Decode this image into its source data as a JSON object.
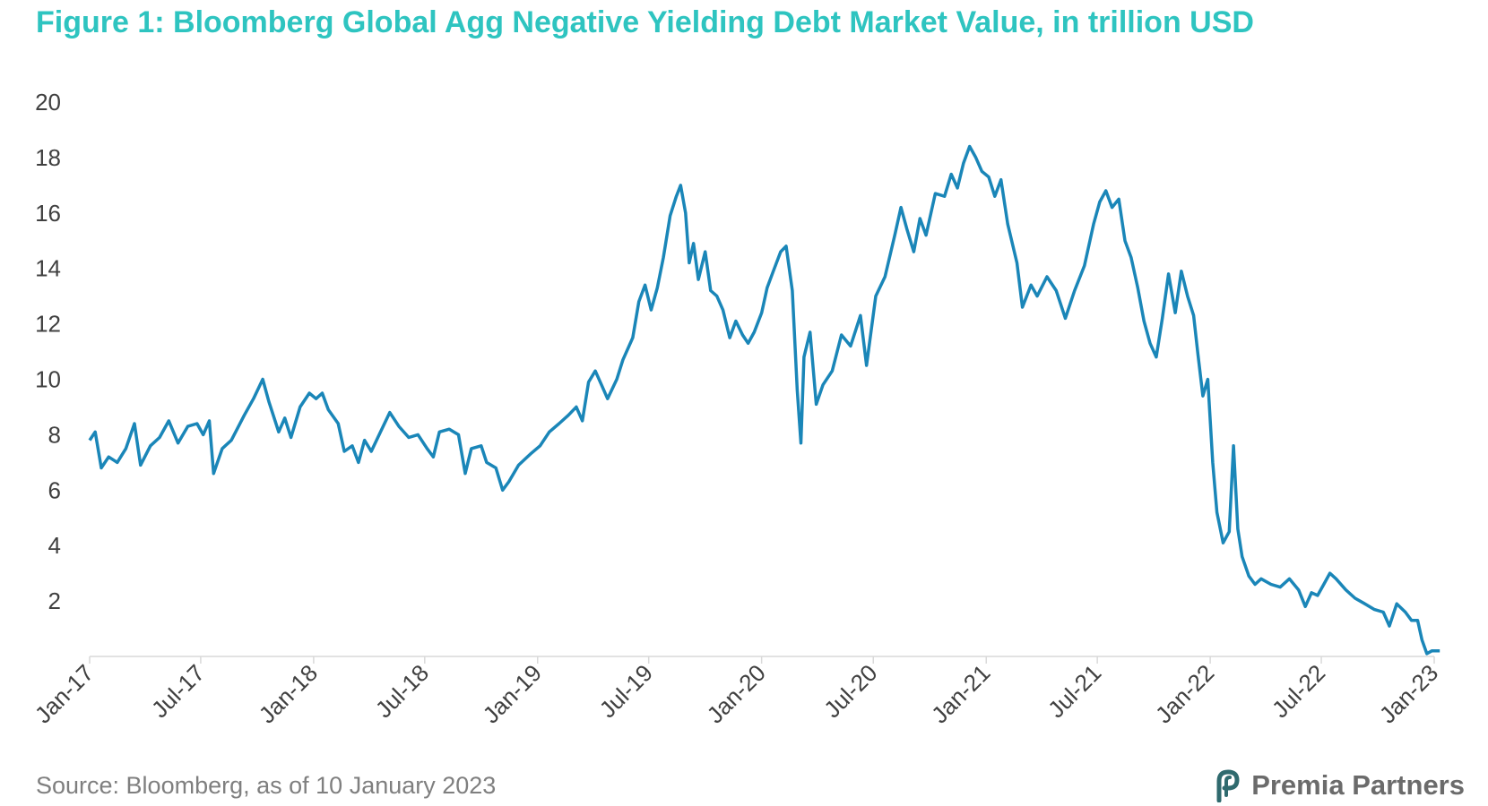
{
  "colors": {
    "title": "#2ec4c0",
    "line": "#1a86b8",
    "axis": "#d9d9d9",
    "text": "#404040",
    "source": "#7f7f7f",
    "brand_mark": "#2f6a6e",
    "brand_text": "#6b6b6b"
  },
  "title": "Figure 1: Bloomberg Global Agg Negative Yielding Debt Market Value, in trillion USD",
  "source": "Source: Bloomberg, as of 10 January 2023",
  "brand": {
    "name": "Premia Partners",
    "logo_icon": "premia-p-logo-icon"
  },
  "chart_data": {
    "type": "line",
    "title": "Figure 1: Bloomberg Global Agg Negative Yielding Debt Market Value, in trillion USD",
    "xlabel": "",
    "ylabel": "",
    "ylim": [
      0,
      20
    ],
    "yticks": [
      2,
      4,
      6,
      8,
      10,
      12,
      14,
      16,
      18,
      20
    ],
    "xlim": [
      "2017-01",
      "2023-01"
    ],
    "xtick_labels": [
      "Jan-17",
      "Jul-17",
      "Jan-18",
      "Jul-18",
      "Jan-19",
      "Jul-19",
      "Jan-20",
      "Jul-20",
      "Jan-21",
      "Jul-21",
      "Jan-22",
      "Jul-22",
      "Jan-23"
    ],
    "grid": false,
    "legend": "none",
    "series": [
      {
        "points": [
          [
            "2017-01-01",
            7.8
          ],
          [
            "2017-01-10",
            8.1
          ],
          [
            "2017-01-20",
            6.8
          ],
          [
            "2017-02-01",
            7.2
          ],
          [
            "2017-02-15",
            7.0
          ],
          [
            "2017-03-01",
            7.5
          ],
          [
            "2017-03-15",
            8.4
          ],
          [
            "2017-03-25",
            6.9
          ],
          [
            "2017-04-10",
            7.6
          ],
          [
            "2017-04-25",
            7.9
          ],
          [
            "2017-05-10",
            8.5
          ],
          [
            "2017-05-25",
            7.7
          ],
          [
            "2017-06-10",
            8.3
          ],
          [
            "2017-06-25",
            8.4
          ],
          [
            "2017-07-05",
            8.0
          ],
          [
            "2017-07-15",
            8.5
          ],
          [
            "2017-07-22",
            6.6
          ],
          [
            "2017-08-05",
            7.5
          ],
          [
            "2017-08-20",
            7.8
          ],
          [
            "2017-09-10",
            8.7
          ],
          [
            "2017-09-25",
            9.3
          ],
          [
            "2017-10-10",
            10.0
          ],
          [
            "2017-10-20",
            9.2
          ],
          [
            "2017-11-05",
            8.1
          ],
          [
            "2017-11-15",
            8.6
          ],
          [
            "2017-11-25",
            7.9
          ],
          [
            "2017-12-10",
            9.0
          ],
          [
            "2017-12-25",
            9.5
          ],
          [
            "2018-01-05",
            9.3
          ],
          [
            "2018-01-15",
            9.5
          ],
          [
            "2018-01-25",
            8.9
          ],
          [
            "2018-02-10",
            8.4
          ],
          [
            "2018-02-20",
            7.4
          ],
          [
            "2018-03-05",
            7.6
          ],
          [
            "2018-03-15",
            7.0
          ],
          [
            "2018-03-25",
            7.8
          ],
          [
            "2018-04-05",
            7.4
          ],
          [
            "2018-04-20",
            8.1
          ],
          [
            "2018-05-05",
            8.8
          ],
          [
            "2018-05-20",
            8.3
          ],
          [
            "2018-06-05",
            7.9
          ],
          [
            "2018-06-20",
            8.0
          ],
          [
            "2018-07-05",
            7.5
          ],
          [
            "2018-07-15",
            7.2
          ],
          [
            "2018-07-25",
            8.1
          ],
          [
            "2018-08-10",
            8.2
          ],
          [
            "2018-08-25",
            8.0
          ],
          [
            "2018-09-05",
            6.6
          ],
          [
            "2018-09-15",
            7.5
          ],
          [
            "2018-10-01",
            7.6
          ],
          [
            "2018-10-10",
            7.0
          ],
          [
            "2018-10-25",
            6.8
          ],
          [
            "2018-11-05",
            6.0
          ],
          [
            "2018-11-15",
            6.3
          ],
          [
            "2018-12-01",
            6.9
          ],
          [
            "2018-12-20",
            7.3
          ],
          [
            "2019-01-05",
            7.6
          ],
          [
            "2019-01-20",
            8.1
          ],
          [
            "2019-02-05",
            8.4
          ],
          [
            "2019-02-20",
            8.7
          ],
          [
            "2019-03-05",
            9.0
          ],
          [
            "2019-03-15",
            8.5
          ],
          [
            "2019-03-25",
            9.9
          ],
          [
            "2019-04-05",
            10.3
          ],
          [
            "2019-04-15",
            9.8
          ],
          [
            "2019-04-25",
            9.3
          ],
          [
            "2019-05-10",
            10.0
          ],
          [
            "2019-05-20",
            10.7
          ],
          [
            "2019-06-05",
            11.5
          ],
          [
            "2019-06-15",
            12.8
          ],
          [
            "2019-06-25",
            13.4
          ],
          [
            "2019-07-05",
            12.5
          ],
          [
            "2019-07-15",
            13.3
          ],
          [
            "2019-07-25",
            14.4
          ],
          [
            "2019-08-05",
            15.9
          ],
          [
            "2019-08-15",
            16.6
          ],
          [
            "2019-08-22",
            17.0
          ],
          [
            "2019-08-30",
            16.0
          ],
          [
            "2019-09-05",
            14.2
          ],
          [
            "2019-09-12",
            14.9
          ],
          [
            "2019-09-20",
            13.6
          ],
          [
            "2019-10-01",
            14.6
          ],
          [
            "2019-10-10",
            13.2
          ],
          [
            "2019-10-20",
            13.0
          ],
          [
            "2019-10-30",
            12.5
          ],
          [
            "2019-11-10",
            11.5
          ],
          [
            "2019-11-20",
            12.1
          ],
          [
            "2019-12-01",
            11.6
          ],
          [
            "2019-12-10",
            11.3
          ],
          [
            "2019-12-20",
            11.7
          ],
          [
            "2020-01-01",
            12.4
          ],
          [
            "2020-01-10",
            13.3
          ],
          [
            "2020-01-20",
            13.9
          ],
          [
            "2020-02-01",
            14.6
          ],
          [
            "2020-02-10",
            14.8
          ],
          [
            "2020-02-20",
            13.2
          ],
          [
            "2020-02-28",
            9.6
          ],
          [
            "2020-03-05",
            7.7
          ],
          [
            "2020-03-10",
            10.8
          ],
          [
            "2020-03-20",
            11.7
          ],
          [
            "2020-03-30",
            9.1
          ],
          [
            "2020-04-10",
            9.8
          ],
          [
            "2020-04-25",
            10.3
          ],
          [
            "2020-05-10",
            11.6
          ],
          [
            "2020-05-25",
            11.2
          ],
          [
            "2020-06-10",
            12.3
          ],
          [
            "2020-06-20",
            10.5
          ],
          [
            "2020-07-05",
            13.0
          ],
          [
            "2020-07-20",
            13.7
          ],
          [
            "2020-08-05",
            15.2
          ],
          [
            "2020-08-15",
            16.2
          ],
          [
            "2020-08-25",
            15.4
          ],
          [
            "2020-09-05",
            14.6
          ],
          [
            "2020-09-15",
            15.8
          ],
          [
            "2020-09-25",
            15.2
          ],
          [
            "2020-10-10",
            16.7
          ],
          [
            "2020-10-25",
            16.6
          ],
          [
            "2020-11-05",
            17.4
          ],
          [
            "2020-11-15",
            16.9
          ],
          [
            "2020-11-25",
            17.8
          ],
          [
            "2020-12-05",
            18.4
          ],
          [
            "2020-12-15",
            18.0
          ],
          [
            "2020-12-25",
            17.5
          ],
          [
            "2021-01-05",
            17.3
          ],
          [
            "2021-01-15",
            16.6
          ],
          [
            "2021-01-25",
            17.2
          ],
          [
            "2021-02-05",
            15.6
          ],
          [
            "2021-02-20",
            14.2
          ],
          [
            "2021-03-01",
            12.6
          ],
          [
            "2021-03-15",
            13.4
          ],
          [
            "2021-03-25",
            13.0
          ],
          [
            "2021-04-10",
            13.7
          ],
          [
            "2021-04-25",
            13.2
          ],
          [
            "2021-05-10",
            12.2
          ],
          [
            "2021-05-25",
            13.2
          ],
          [
            "2021-06-10",
            14.1
          ],
          [
            "2021-06-25",
            15.6
          ],
          [
            "2021-07-05",
            16.4
          ],
          [
            "2021-07-15",
            16.8
          ],
          [
            "2021-07-25",
            16.2
          ],
          [
            "2021-08-05",
            16.5
          ],
          [
            "2021-08-15",
            15.0
          ],
          [
            "2021-08-25",
            14.4
          ],
          [
            "2021-09-05",
            13.3
          ],
          [
            "2021-09-15",
            12.1
          ],
          [
            "2021-09-25",
            11.3
          ],
          [
            "2021-10-05",
            10.8
          ],
          [
            "2021-10-15",
            12.2
          ],
          [
            "2021-10-25",
            13.8
          ],
          [
            "2021-11-05",
            12.4
          ],
          [
            "2021-11-15",
            13.9
          ],
          [
            "2021-11-25",
            13.0
          ],
          [
            "2021-12-05",
            12.3
          ],
          [
            "2021-12-12",
            10.9
          ],
          [
            "2021-12-20",
            9.4
          ],
          [
            "2021-12-28",
            10.0
          ],
          [
            "2022-01-05",
            7.0
          ],
          [
            "2022-01-12",
            5.2
          ],
          [
            "2022-01-22",
            4.1
          ],
          [
            "2022-02-01",
            4.5
          ],
          [
            "2022-02-08",
            7.6
          ],
          [
            "2022-02-15",
            4.6
          ],
          [
            "2022-02-22",
            3.6
          ],
          [
            "2022-03-05",
            2.9
          ],
          [
            "2022-03-15",
            2.6
          ],
          [
            "2022-03-25",
            2.8
          ],
          [
            "2022-04-10",
            2.6
          ],
          [
            "2022-04-25",
            2.5
          ],
          [
            "2022-05-10",
            2.8
          ],
          [
            "2022-05-25",
            2.4
          ],
          [
            "2022-06-05",
            1.8
          ],
          [
            "2022-06-15",
            2.3
          ],
          [
            "2022-06-25",
            2.2
          ],
          [
            "2022-07-05",
            2.6
          ],
          [
            "2022-07-15",
            3.0
          ],
          [
            "2022-07-25",
            2.8
          ],
          [
            "2022-08-10",
            2.4
          ],
          [
            "2022-08-25",
            2.1
          ],
          [
            "2022-09-10",
            1.9
          ],
          [
            "2022-09-25",
            1.7
          ],
          [
            "2022-10-10",
            1.6
          ],
          [
            "2022-10-20",
            1.1
          ],
          [
            "2022-11-01",
            1.9
          ],
          [
            "2022-11-15",
            1.6
          ],
          [
            "2022-11-25",
            1.3
          ],
          [
            "2022-12-05",
            1.3
          ],
          [
            "2022-12-12",
            0.6
          ],
          [
            "2022-12-20",
            0.1
          ],
          [
            "2022-12-28",
            0.2
          ],
          [
            "2023-01-10",
            0.2
          ]
        ]
      }
    ]
  }
}
